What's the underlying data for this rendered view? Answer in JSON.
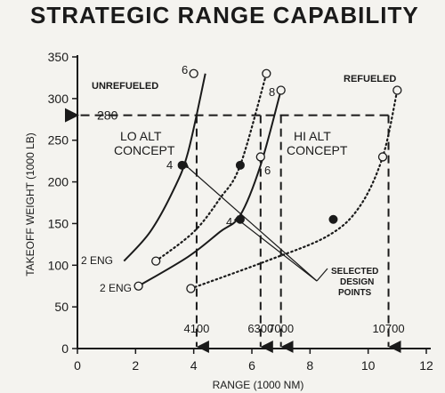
{
  "title": "STRATEGIC RANGE CAPABILITY",
  "chart_data": {
    "type": "line",
    "xlabel": "RANGE (1000 NM)",
    "ylabel": "TAKEOFF WEIGHT (1000 LB)",
    "xlim": [
      0,
      12
    ],
    "ylim": [
      0,
      350
    ],
    "xticks": [
      "0",
      "2",
      "4",
      "6",
      "8",
      "10",
      "12"
    ],
    "yticks": [
      "0",
      "50",
      "100",
      "150",
      "200",
      "250",
      "300",
      "350"
    ],
    "ref_weight": {
      "value": 280,
      "label": "280"
    },
    "ranges": [
      {
        "value": 4.1,
        "label": "4100"
      },
      {
        "value": 6.3,
        "label": "6300"
      },
      {
        "value": 7.0,
        "label": "7000"
      },
      {
        "value": 10.7,
        "label": "10700"
      }
    ],
    "annotations": {
      "unrefueled": "UNREFUELED",
      "refueled": "REFUELED",
      "lo_alt": [
        "LO ALT",
        "CONCEPT"
      ],
      "hi_alt": [
        "HI ALT",
        "CONCEPT"
      ],
      "selected": [
        "SELECTED",
        "DESIGN",
        "POINTS"
      ],
      "eng2_upper": "2 ENG",
      "eng2_lower": "2 ENG",
      "n6a": "6",
      "n8": "8",
      "n6b": "6",
      "n4a": "4",
      "n4b": "4"
    },
    "series": [
      {
        "style": "solid",
        "points": [
          [
            1.6,
            105
          ],
          [
            2.5,
            140
          ],
          [
            3.3,
            190
          ],
          [
            3.8,
            235
          ],
          [
            4.4,
            330
          ]
        ]
      },
      {
        "style": "dotted",
        "points": [
          [
            2.7,
            105
          ],
          [
            4.0,
            140
          ],
          [
            4.9,
            180
          ],
          [
            5.6,
            220
          ],
          [
            6.5,
            330
          ]
        ]
      },
      {
        "style": "solid",
        "points": [
          [
            2.1,
            75
          ],
          [
            3.8,
            110
          ],
          [
            4.9,
            140
          ],
          [
            5.6,
            160
          ],
          [
            6.3,
            220
          ],
          [
            7.0,
            310
          ]
        ]
      },
      {
        "style": "dotted",
        "points": [
          [
            3.9,
            72
          ],
          [
            6.5,
            105
          ],
          [
            8.6,
            135
          ],
          [
            9.7,
            170
          ],
          [
            10.5,
            230
          ],
          [
            11.0,
            310
          ]
        ]
      }
    ],
    "open_markers": [
      [
        4.0,
        330
      ],
      [
        6.5,
        330
      ],
      [
        7.0,
        310
      ],
      [
        6.3,
        230
      ],
      [
        2.7,
        105
      ],
      [
        2.1,
        75
      ],
      [
        3.9,
        72
      ],
      [
        10.5,
        230
      ],
      [
        11.0,
        310
      ]
    ],
    "selected_markers": [
      [
        3.6,
        220
      ],
      [
        5.6,
        220
      ],
      [
        5.6,
        155
      ],
      [
        8.8,
        155
      ]
    ]
  }
}
